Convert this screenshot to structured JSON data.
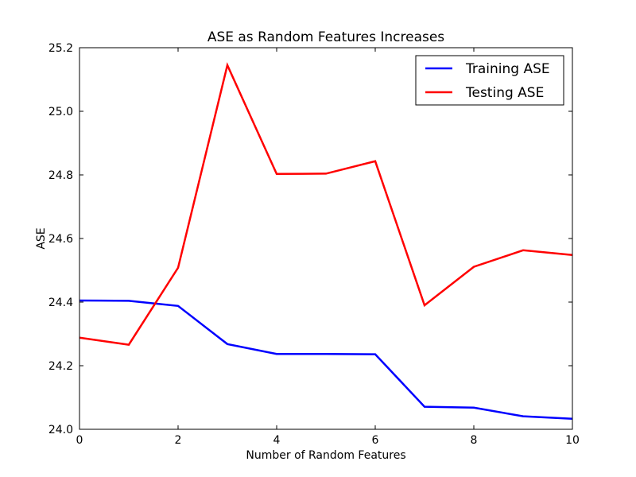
{
  "chart_data": {
    "type": "line",
    "title": "ASE as Random Features Increases",
    "xlabel": "Number of Random Features",
    "ylabel": "ASE",
    "xlim": [
      0,
      10
    ],
    "ylim": [
      24.0,
      25.2
    ],
    "xticks": [
      0,
      2,
      4,
      6,
      8,
      10
    ],
    "yticks": [
      24.0,
      24.2,
      24.4,
      24.6,
      24.8,
      25.0,
      25.2
    ],
    "grid": false,
    "legend_position": "top-right",
    "x": [
      0,
      1,
      2,
      3,
      4,
      5,
      6,
      7,
      8,
      9,
      10
    ],
    "series": [
      {
        "name": "Training ASE",
        "color": "#0000ff",
        "values": [
          24.405,
          24.404,
          24.388,
          24.268,
          24.237,
          24.237,
          24.236,
          24.071,
          24.068,
          24.041,
          24.033
        ]
      },
      {
        "name": "Testing ASE",
        "color": "#ff0000",
        "values": [
          24.288,
          24.266,
          24.508,
          25.145,
          24.803,
          24.804,
          24.843,
          24.39,
          24.511,
          24.563,
          24.548
        ]
      }
    ]
  }
}
